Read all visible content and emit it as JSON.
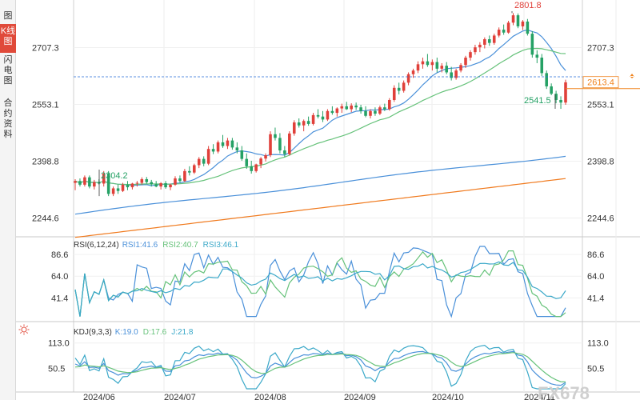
{
  "sidebar": {
    "tabs": [
      {
        "label": "图",
        "active": false
      },
      {
        "label": "K线图",
        "active": true
      },
      {
        "label": "闪电图",
        "active": false
      },
      {
        "label": "合约资料",
        "active": false
      }
    ]
  },
  "main_panel": {
    "y_ticks": [
      "2707.3",
      "2553.1",
      "2398.8",
      "2244.6"
    ],
    "current_price": "2613.4",
    "high_label": "2801.8",
    "low_label": "2304.2",
    "recent_low_label": "2541.5"
  },
  "rsi_panel": {
    "title": "RSI(6,12,24)",
    "rsi1": "RSI1:41.6",
    "rsi2": "RSI2:40.7",
    "rsi3": "RSI3:46.1",
    "y_ticks": [
      "86.6",
      "64.0",
      "41.4"
    ]
  },
  "kdj_panel": {
    "title": "KDJ(9,3,3)",
    "k": "K:19.0",
    "d": "D:17.6",
    "j": "J:21.8",
    "y_ticks": [
      "113.0",
      "50.5"
    ]
  },
  "x_axis": {
    "dates": [
      "2024/06",
      "2024/07",
      "2024/08",
      "2024/09",
      "2024/10",
      "2024/11"
    ]
  },
  "watermark": "FX678",
  "colors": {
    "up": "#e0403a",
    "down": "#25a165",
    "ma_blue": "#4a90d9",
    "ma_green": "#66c27a",
    "ma_orange": "#f07a1e",
    "price_line": "#2a6fd6",
    "current_price": "#f0831e"
  },
  "chart_data": {
    "type": "candlestick",
    "title": "",
    "ylim": [
      2200,
      2830
    ],
    "candles": [
      [
        2340,
        2350,
        2320,
        2345
      ],
      [
        2345,
        2352,
        2330,
        2335
      ],
      [
        2335,
        2360,
        2330,
        2355
      ],
      [
        2355,
        2360,
        2325,
        2330
      ],
      [
        2330,
        2348,
        2322,
        2342
      ],
      [
        2342,
        2350,
        2335,
        2338
      ],
      [
        2338,
        2372,
        2330,
        2365
      ],
      [
        2365,
        2372,
        2304,
        2310
      ],
      [
        2310,
        2330,
        2304,
        2325
      ],
      [
        2325,
        2335,
        2310,
        2318
      ],
      [
        2318,
        2340,
        2315,
        2335
      ],
      [
        2335,
        2345,
        2320,
        2328
      ],
      [
        2328,
        2340,
        2322,
        2338
      ],
      [
        2338,
        2345,
        2330,
        2340
      ],
      [
        2340,
        2355,
        2335,
        2350
      ],
      [
        2350,
        2356,
        2338,
        2342
      ],
      [
        2342,
        2348,
        2330,
        2336
      ],
      [
        2336,
        2345,
        2328,
        2330
      ],
      [
        2330,
        2342,
        2322,
        2339
      ],
      [
        2339,
        2345,
        2324,
        2328
      ],
      [
        2328,
        2338,
        2320,
        2335
      ],
      [
        2335,
        2358,
        2332,
        2352
      ],
      [
        2352,
        2360,
        2340,
        2345
      ],
      [
        2345,
        2378,
        2342,
        2372
      ],
      [
        2372,
        2385,
        2360,
        2368
      ],
      [
        2368,
        2392,
        2364,
        2388
      ],
      [
        2388,
        2410,
        2380,
        2405
      ],
      [
        2405,
        2412,
        2385,
        2392
      ],
      [
        2392,
        2440,
        2388,
        2432
      ],
      [
        2432,
        2445,
        2418,
        2425
      ],
      [
        2425,
        2455,
        2420,
        2450
      ],
      [
        2450,
        2470,
        2435,
        2440
      ],
      [
        2440,
        2462,
        2432,
        2455
      ],
      [
        2455,
        2462,
        2430,
        2436
      ],
      [
        2436,
        2450,
        2420,
        2428
      ],
      [
        2428,
        2440,
        2400,
        2405
      ],
      [
        2405,
        2420,
        2378,
        2385
      ],
      [
        2385,
        2400,
        2365,
        2372
      ],
      [
        2372,
        2392,
        2368,
        2390
      ],
      [
        2390,
        2410,
        2380,
        2406
      ],
      [
        2406,
        2420,
        2398,
        2415
      ],
      [
        2415,
        2480,
        2410,
        2472
      ],
      [
        2472,
        2490,
        2455,
        2462
      ],
      [
        2462,
        2475,
        2420,
        2428
      ],
      [
        2428,
        2440,
        2410,
        2418
      ],
      [
        2418,
        2480,
        2414,
        2474
      ],
      [
        2474,
        2510,
        2468,
        2504
      ],
      [
        2504,
        2515,
        2490,
        2496
      ],
      [
        2496,
        2512,
        2480,
        2508
      ],
      [
        2508,
        2520,
        2495,
        2500
      ],
      [
        2500,
        2530,
        2496,
        2524
      ],
      [
        2524,
        2540,
        2515,
        2520
      ],
      [
        2520,
        2535,
        2505,
        2512
      ],
      [
        2512,
        2540,
        2508,
        2535
      ],
      [
        2535,
        2548,
        2525,
        2530
      ],
      [
        2530,
        2545,
        2520,
        2542
      ],
      [
        2542,
        2555,
        2530,
        2548
      ],
      [
        2548,
        2560,
        2538,
        2540
      ],
      [
        2540,
        2556,
        2532,
        2550
      ],
      [
        2550,
        2558,
        2538,
        2545
      ],
      [
        2545,
        2552,
        2528,
        2535
      ],
      [
        2535,
        2548,
        2518,
        2522
      ],
      [
        2522,
        2540,
        2515,
        2535
      ],
      [
        2535,
        2545,
        2522,
        2528
      ],
      [
        2528,
        2550,
        2524,
        2545
      ],
      [
        2545,
        2555,
        2535,
        2540
      ],
      [
        2540,
        2570,
        2536,
        2565
      ],
      [
        2565,
        2605,
        2560,
        2598
      ],
      [
        2598,
        2612,
        2580,
        2590
      ],
      [
        2590,
        2618,
        2585,
        2612
      ],
      [
        2612,
        2640,
        2605,
        2635
      ],
      [
        2635,
        2650,
        2625,
        2645
      ],
      [
        2645,
        2670,
        2638,
        2662
      ],
      [
        2662,
        2680,
        2650,
        2670
      ],
      [
        2670,
        2690,
        2655,
        2660
      ],
      [
        2660,
        2675,
        2645,
        2668
      ],
      [
        2668,
        2680,
        2640,
        2650
      ],
      [
        2650,
        2665,
        2640,
        2658
      ],
      [
        2658,
        2668,
        2635,
        2640
      ],
      [
        2640,
        2655,
        2618,
        2625
      ],
      [
        2625,
        2650,
        2620,
        2645
      ],
      [
        2645,
        2665,
        2640,
        2660
      ],
      [
        2660,
        2685,
        2652,
        2680
      ],
      [
        2680,
        2700,
        2672,
        2695
      ],
      [
        2695,
        2715,
        2688,
        2708
      ],
      [
        2708,
        2722,
        2695,
        2715
      ],
      [
        2715,
        2735,
        2705,
        2730
      ],
      [
        2730,
        2740,
        2712,
        2720
      ],
      [
        2720,
        2745,
        2715,
        2740
      ],
      [
        2740,
        2762,
        2735,
        2756
      ],
      [
        2756,
        2770,
        2742,
        2748
      ],
      [
        2748,
        2780,
        2745,
        2775
      ],
      [
        2775,
        2801,
        2768,
        2795
      ],
      [
        2795,
        2800,
        2760,
        2765
      ],
      [
        2765,
        2782,
        2755,
        2778
      ],
      [
        2778,
        2785,
        2740,
        2745
      ],
      [
        2745,
        2752,
        2680,
        2688
      ],
      [
        2688,
        2700,
        2665,
        2680
      ],
      [
        2680,
        2690,
        2630,
        2638
      ],
      [
        2638,
        2645,
        2595,
        2602
      ],
      [
        2602,
        2610,
        2578,
        2582
      ],
      [
        2582,
        2590,
        2556,
        2565
      ],
      [
        2565,
        2575,
        2541,
        2558
      ],
      [
        2558,
        2620,
        2552,
        2613
      ]
    ]
  }
}
